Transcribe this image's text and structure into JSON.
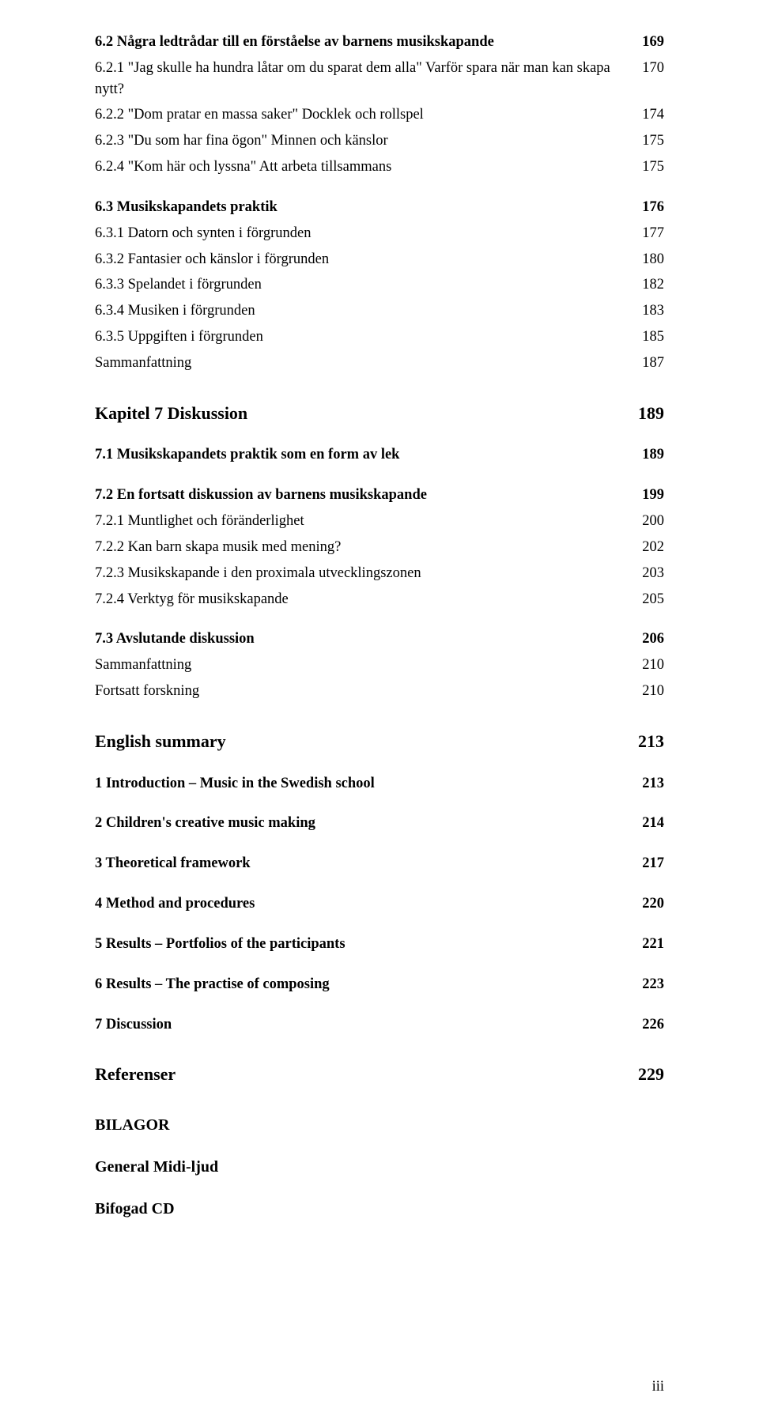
{
  "toc": [
    {
      "type": "section",
      "label": "6.2 Några ledtrådar till en förståelse av barnens musikskapande",
      "page": "169"
    },
    {
      "type": "sub",
      "label": "6.2.1 \"Jag skulle ha hundra låtar om du sparat dem alla\" Varför spara när man kan skapa nytt?",
      "page": "170"
    },
    {
      "type": "sub",
      "label": "6.2.2 \"Dom pratar en massa saker\" Docklek och rollspel",
      "page": "174"
    },
    {
      "type": "sub",
      "label": "6.2.3 \"Du som har fina ögon\" Minnen och känslor",
      "page": "175"
    },
    {
      "type": "sub",
      "label": "6.2.4 \"Kom här och lyssna\" Att arbeta tillsammans",
      "page": "175"
    },
    {
      "type": "section",
      "label": "6.3 Musikskapandets praktik",
      "page": "176",
      "gap": "md"
    },
    {
      "type": "sub",
      "label": "6.3.1 Datorn och synten i förgrunden",
      "page": "177"
    },
    {
      "type": "sub",
      "label": "6.3.2 Fantasier och känslor i förgrunden",
      "page": "180"
    },
    {
      "type": "sub",
      "label": "6.3.3 Spelandet i förgrunden",
      "page": "182"
    },
    {
      "type": "sub",
      "label": "6.3.4 Musiken i förgrunden",
      "page": "183"
    },
    {
      "type": "sub",
      "label": "6.3.5 Uppgiften i förgrunden",
      "page": "185"
    },
    {
      "type": "sub",
      "label": "Sammanfattning",
      "page": "187"
    },
    {
      "type": "chapter",
      "label": "Kapitel 7  Diskussion",
      "page": "189",
      "gap": "lg"
    },
    {
      "type": "section",
      "label": "7.1 Musikskapandets praktik som en form av lek",
      "page": "189",
      "gap": "md"
    },
    {
      "type": "section",
      "label": "7.2 En fortsatt diskussion av barnens musikskapande",
      "page": "199",
      "gap": "md"
    },
    {
      "type": "sub",
      "label": "7.2.1 Muntlighet och föränderlighet",
      "page": "200"
    },
    {
      "type": "sub",
      "label": "7.2.2 Kan barn skapa musik med mening?",
      "page": "202"
    },
    {
      "type": "sub",
      "label": "7.2.3 Musikskapande i den proximala utvecklingszonen",
      "page": "203"
    },
    {
      "type": "sub",
      "label": "7.2.4 Verktyg för musikskapande",
      "page": "205"
    },
    {
      "type": "section",
      "label": "7.3 Avslutande diskussion",
      "page": "206",
      "gap": "md"
    },
    {
      "type": "sub",
      "label": "Sammanfattning",
      "page": "210"
    },
    {
      "type": "sub",
      "label": "Fortsatt forskning",
      "page": "210"
    },
    {
      "type": "chapter",
      "label": "English summary",
      "page": "213",
      "gap": "lg"
    },
    {
      "type": "section",
      "label": "1 Introduction – Music in the Swedish school",
      "page": "213",
      "gap": "md"
    },
    {
      "type": "section",
      "label": "2 Children's creative music making",
      "page": "214",
      "gap": "md"
    },
    {
      "type": "section",
      "label": "3 Theoretical framework",
      "page": "217",
      "gap": "md"
    },
    {
      "type": "section",
      "label": "4 Method and procedures",
      "page": "220",
      "gap": "md"
    },
    {
      "type": "section",
      "label": "5 Results – Portfolios of the participants",
      "page": "221",
      "gap": "md"
    },
    {
      "type": "section",
      "label": "6 Results – The practise of composing",
      "page": "223",
      "gap": "md"
    },
    {
      "type": "section",
      "label": "7 Discussion",
      "page": "226",
      "gap": "md"
    },
    {
      "type": "chapter",
      "label": "Referenser",
      "page": "229",
      "gap": "lg"
    },
    {
      "type": "appendix",
      "label": "BILAGOR",
      "page": "",
      "gap": "lg"
    },
    {
      "type": "appendix",
      "label": "General Midi-ljud",
      "page": "",
      "gap": "md"
    },
    {
      "type": "appendix",
      "label": "Bifogad CD",
      "page": "",
      "gap": "md"
    }
  ],
  "footer": "iii",
  "style": {
    "type_classes": {
      "sub": {
        "row": "fs-sub",
        "label": "",
        "page": ""
      },
      "section": {
        "row": "fs-sec",
        "label": "bold",
        "page": "bold"
      },
      "chapter": {
        "row": "fs-chap",
        "label": "bold",
        "page": "bold"
      },
      "appendix": {
        "row": "fs-app",
        "label": "bold",
        "page": ""
      }
    },
    "gap_classes": {
      "sm": "gap-sm",
      "md": "gap-md",
      "lg": "gap-lg"
    }
  }
}
